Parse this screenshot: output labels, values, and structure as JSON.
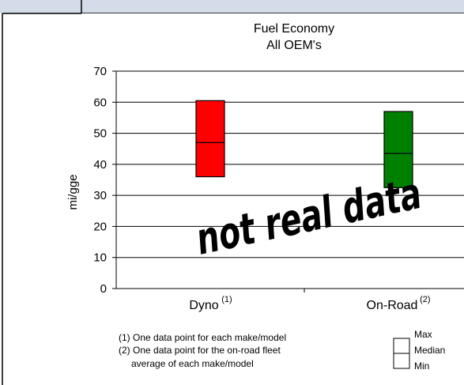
{
  "chart_data": {
    "type": "box",
    "title": "Fuel Economy",
    "subtitle": "All OEM's",
    "ylabel": "mi/gge",
    "ylim": [
      0,
      70
    ],
    "yticks": [
      0,
      10,
      20,
      30,
      40,
      50,
      60,
      70
    ],
    "categories": [
      {
        "name": "Dyno",
        "marker": "(1)",
        "min": 36,
        "median": 47,
        "max": 60.5,
        "color": "#ff0000"
      },
      {
        "name": "On-Road",
        "marker": "(2)",
        "min": 32.5,
        "median": 43.5,
        "max": 57,
        "color": "#008000"
      }
    ],
    "watermark": "not real data",
    "footnotes": [
      "(1) One data point for each make/model",
      "(2) One data point for the on-road fleet",
      "average of each make/model"
    ],
    "legend": {
      "max": "Max",
      "median": "Median",
      "min": "Min"
    }
  }
}
